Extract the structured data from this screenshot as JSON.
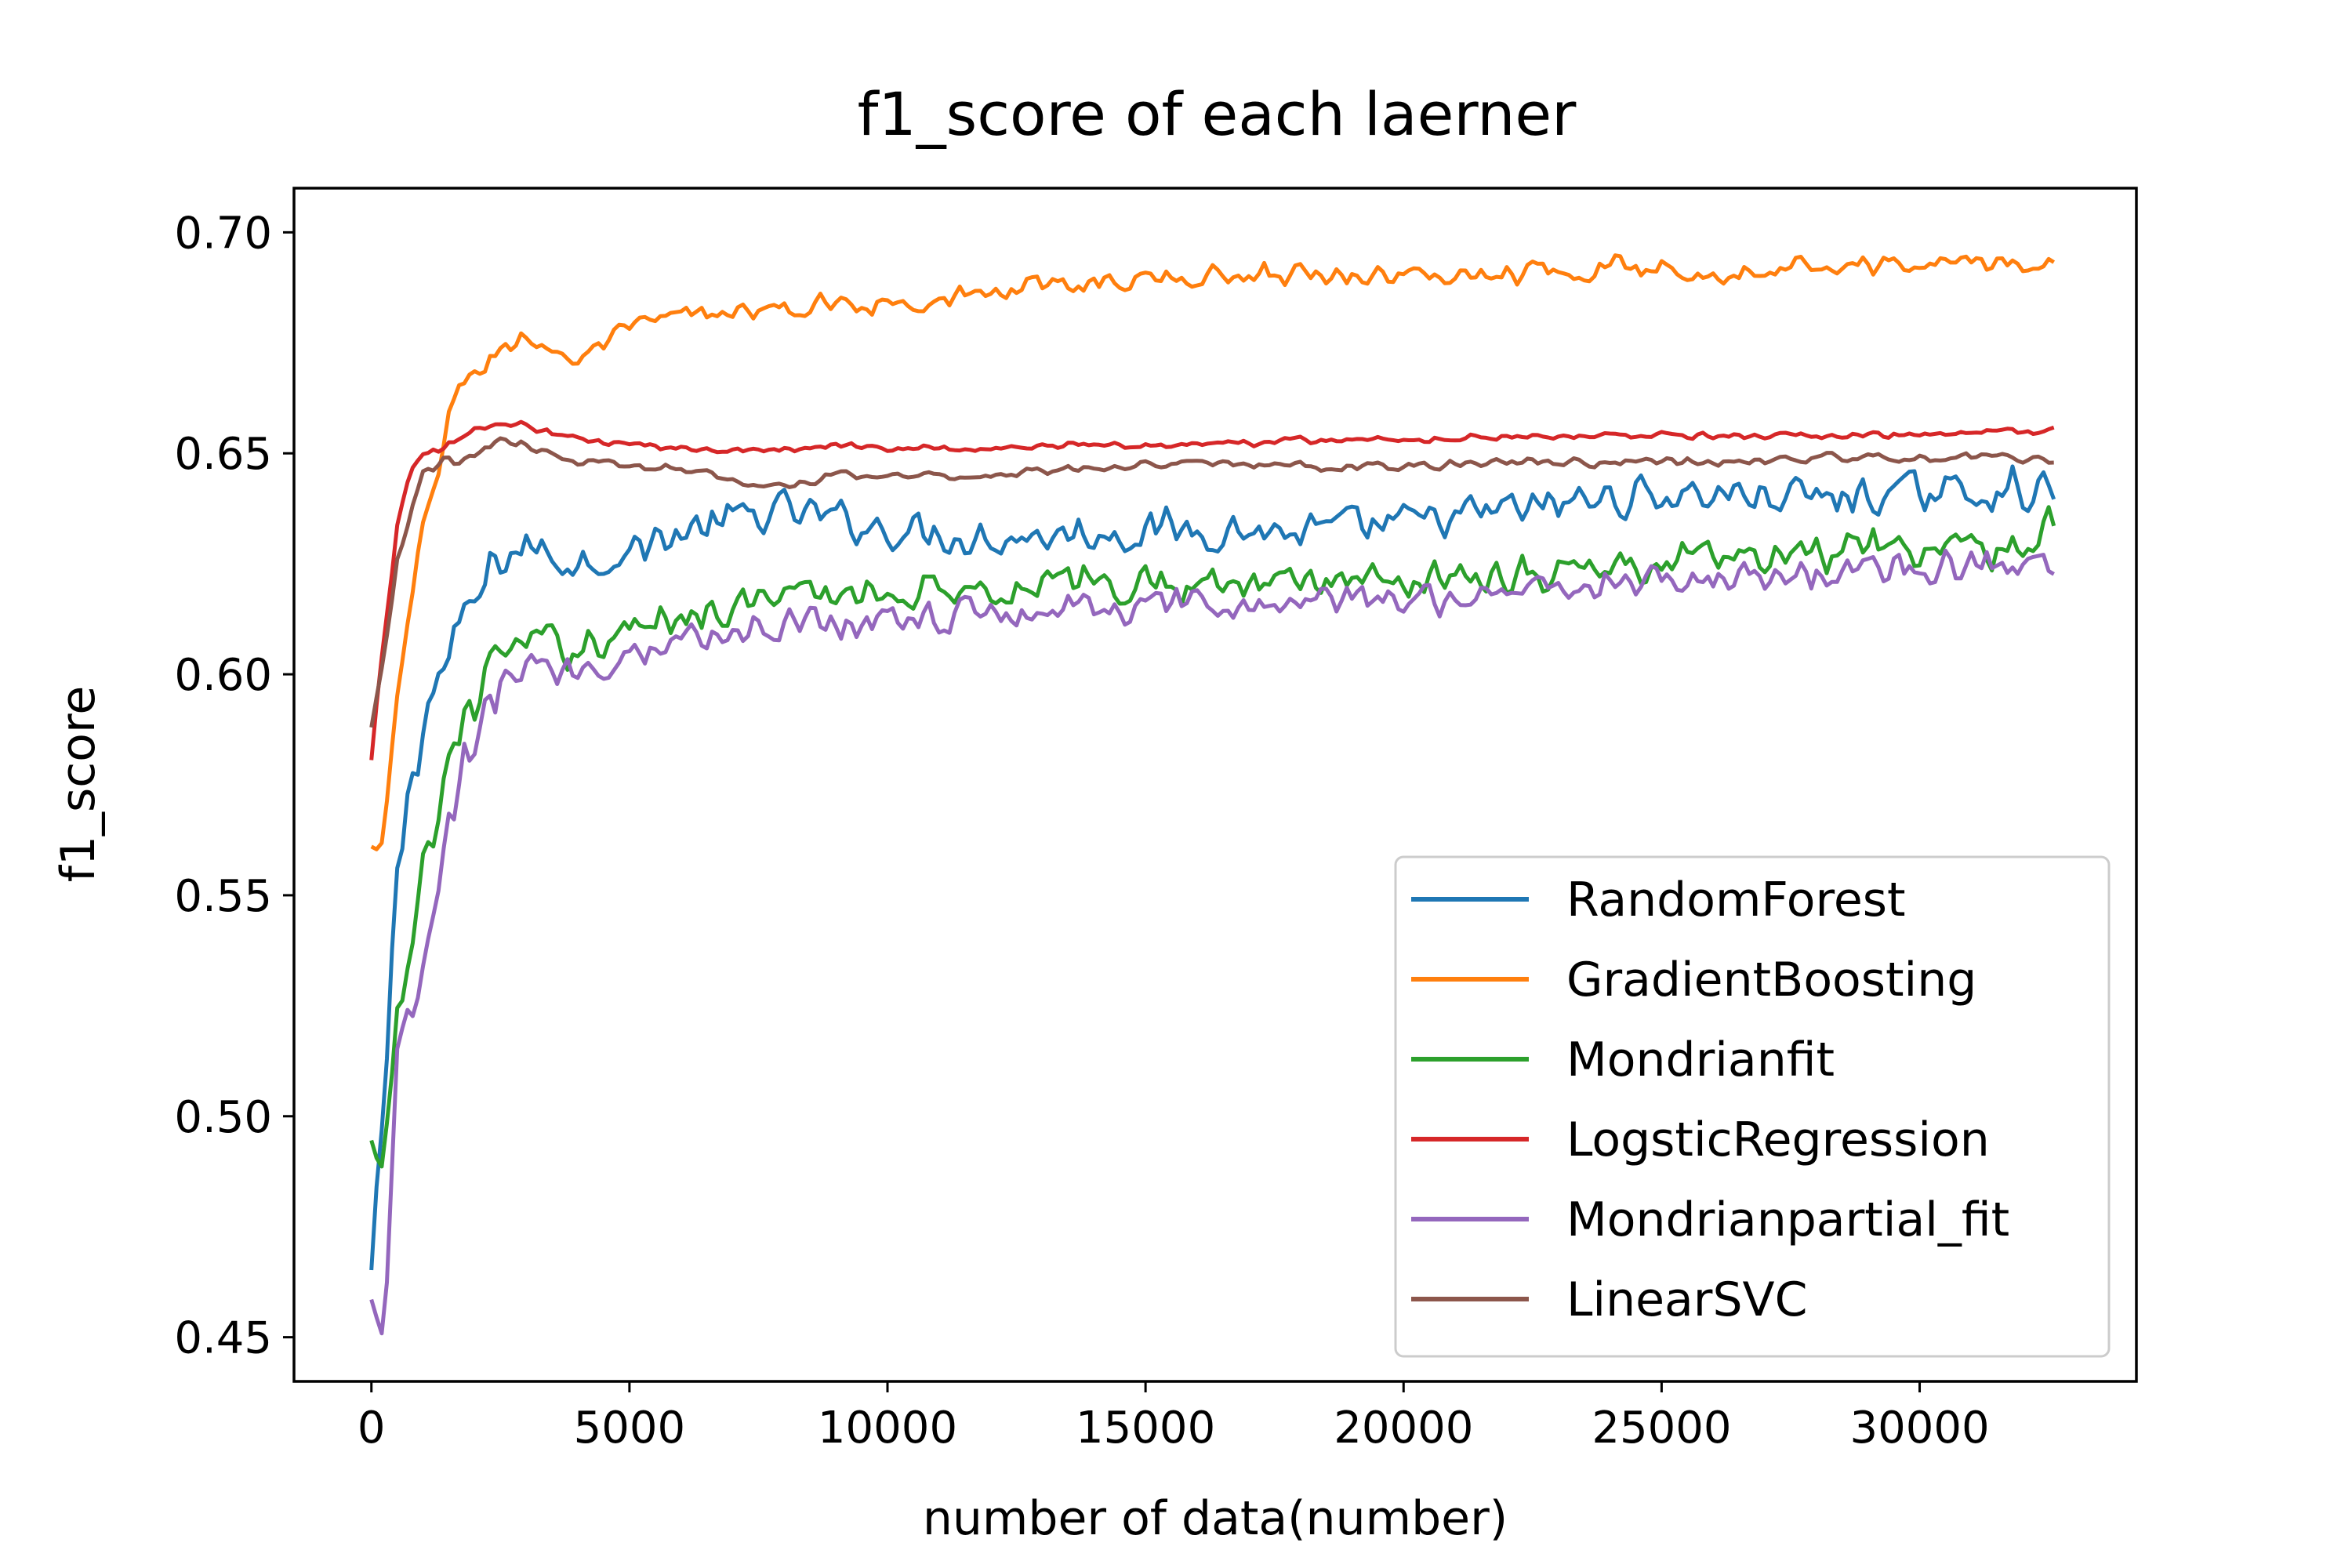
{
  "chart_data": {
    "type": "line",
    "title": "f1_score of each laerner",
    "xlabel": "number of data(number)",
    "ylabel": "f1_score",
    "xlim": [
      -1500,
      34200
    ],
    "ylim": [
      0.44,
      0.71
    ],
    "xticks": [
      0,
      5000,
      10000,
      15000,
      20000,
      25000,
      30000
    ],
    "xtick_labels": [
      "0",
      "5000",
      "10000",
      "15000",
      "20000",
      "25000",
      "30000"
    ],
    "yticks": [
      0.45,
      0.5,
      0.55,
      0.6,
      0.65,
      0.7
    ],
    "ytick_labels": [
      "0.45",
      "0.50",
      "0.55",
      "0.60",
      "0.65",
      "0.70"
    ],
    "grid": false,
    "legend_position": "lower-right",
    "noise_note": "",
    "series": [
      {
        "name": "RandomForest",
        "color": "#1f77b4",
        "x": [
          0,
          250,
          500,
          750,
          1000,
          1500,
          2000,
          2500,
          3000,
          4000,
          5000,
          6000,
          7000,
          8000,
          9000,
          10000,
          12000,
          14000,
          16000,
          18000,
          20000,
          22000,
          24000,
          26000,
          28000,
          30000,
          32000,
          32600
        ],
        "y": [
          0.464,
          0.5,
          0.555,
          0.575,
          0.59,
          0.604,
          0.616,
          0.626,
          0.629,
          0.625,
          0.628,
          0.632,
          0.635,
          0.637,
          0.635,
          0.633,
          0.631,
          0.632,
          0.633,
          0.632,
          0.634,
          0.637,
          0.64,
          0.641,
          0.64,
          0.641,
          0.642,
          0.641
        ],
        "noise": 0.0055
      },
      {
        "name": "GradientBoosting",
        "color": "#ff7f0e",
        "x": [
          0,
          250,
          500,
          750,
          1000,
          1500,
          2000,
          2500,
          3000,
          4000,
          5000,
          6000,
          7000,
          8000,
          9000,
          10000,
          12000,
          14000,
          16000,
          18000,
          20000,
          22000,
          24000,
          26000,
          28000,
          30000,
          32000,
          32600
        ],
        "y": [
          0.56,
          0.562,
          0.595,
          0.612,
          0.632,
          0.659,
          0.668,
          0.674,
          0.676,
          0.671,
          0.678,
          0.681,
          0.682,
          0.682,
          0.684,
          0.684,
          0.686,
          0.689,
          0.69,
          0.691,
          0.69,
          0.691,
          0.692,
          0.691,
          0.693,
          0.693,
          0.693,
          0.694
        ],
        "noise": 0.003
      },
      {
        "name": "Mondrianfit",
        "color": "#2ca02c",
        "x": [
          0,
          250,
          500,
          750,
          1000,
          1500,
          2000,
          2500,
          3000,
          4000,
          5000,
          6000,
          7000,
          8000,
          9000,
          10000,
          12000,
          14000,
          16000,
          18000,
          20000,
          22000,
          24000,
          26000,
          28000,
          30000,
          32000,
          32600
        ],
        "y": [
          0.492,
          0.482,
          0.525,
          0.535,
          0.555,
          0.58,
          0.596,
          0.604,
          0.607,
          0.606,
          0.61,
          0.614,
          0.616,
          0.617,
          0.618,
          0.619,
          0.62,
          0.62,
          0.621,
          0.621,
          0.622,
          0.623,
          0.624,
          0.626,
          0.627,
          0.628,
          0.629,
          0.635
        ],
        "noise": 0.0055
      },
      {
        "name": "LogsticRegression",
        "color": "#d62728",
        "x": [
          0,
          250,
          500,
          750,
          1000,
          1500,
          2000,
          2500,
          3000,
          4000,
          5000,
          6000,
          7000,
          8000,
          9000,
          10000,
          12000,
          14000,
          16000,
          18000,
          20000,
          22000,
          24000,
          26000,
          28000,
          30000,
          32000,
          32600
        ],
        "y": [
          0.58,
          0.61,
          0.634,
          0.645,
          0.649,
          0.652,
          0.655,
          0.657,
          0.656,
          0.653,
          0.652,
          0.651,
          0.651,
          0.651,
          0.652,
          0.651,
          0.651,
          0.652,
          0.652,
          0.653,
          0.653,
          0.654,
          0.654,
          0.654,
          0.654,
          0.654,
          0.655,
          0.655
        ],
        "noise": 0.001
      },
      {
        "name": "Mondrianpartial_fit",
        "color": "#9467bd",
        "x": [
          0,
          250,
          500,
          750,
          1000,
          1500,
          2000,
          2500,
          3000,
          4000,
          5000,
          6000,
          7000,
          8000,
          9000,
          10000,
          12000,
          14000,
          16000,
          18000,
          20000,
          22000,
          24000,
          26000,
          28000,
          30000,
          32000,
          32600
        ],
        "y": [
          0.455,
          0.455,
          0.51,
          0.52,
          0.53,
          0.565,
          0.585,
          0.598,
          0.601,
          0.601,
          0.605,
          0.608,
          0.61,
          0.612,
          0.612,
          0.613,
          0.614,
          0.615,
          0.615,
          0.616,
          0.617,
          0.619,
          0.621,
          0.622,
          0.623,
          0.624,
          0.625,
          0.623
        ],
        "noise": 0.005
      },
      {
        "name": "LinearSVC",
        "color": "#8c564b",
        "x": [
          0,
          250,
          500,
          750,
          1000,
          1500,
          2000,
          2500,
          3000,
          4000,
          5000,
          6000,
          7000,
          8000,
          9000,
          10000,
          12000,
          14000,
          16000,
          18000,
          20000,
          22000,
          24000,
          26000,
          28000,
          30000,
          32000,
          32600
        ],
        "y": [
          0.587,
          0.605,
          0.625,
          0.635,
          0.645,
          0.648,
          0.65,
          0.653,
          0.652,
          0.648,
          0.647,
          0.647,
          0.644,
          0.642,
          0.645,
          0.645,
          0.645,
          0.647,
          0.648,
          0.647,
          0.647,
          0.648,
          0.648,
          0.648,
          0.649,
          0.649,
          0.649,
          0.648
        ],
        "noise": 0.0012
      }
    ]
  }
}
